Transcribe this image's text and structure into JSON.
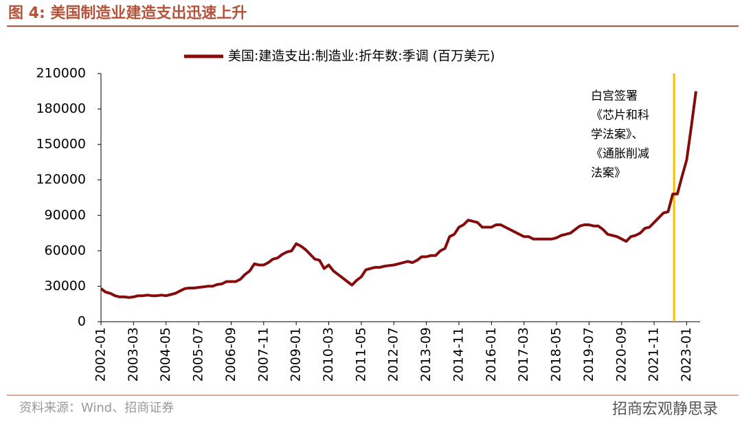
{
  "chart_data": {
    "type": "line",
    "title": "图 4:  美国制造业建造支出迅速上升",
    "source": "资料来源：Wind、招商证券",
    "watermark": "招商宏观静思录",
    "x": [
      "2002-01",
      "2002-03",
      "2002-05",
      "2002-07",
      "2002-09",
      "2002-11",
      "2003-01",
      "2003-03",
      "2003-05",
      "2003-07",
      "2003-09",
      "2003-11",
      "2004-01",
      "2004-03",
      "2004-05",
      "2004-07",
      "2004-09",
      "2004-11",
      "2005-01",
      "2005-03",
      "2005-05",
      "2005-07",
      "2005-09",
      "2005-11",
      "2006-01",
      "2006-03",
      "2006-05",
      "2006-07",
      "2006-09",
      "2006-11",
      "2007-01",
      "2007-03",
      "2007-05",
      "2007-07",
      "2007-09",
      "2007-11",
      "2008-01",
      "2008-03",
      "2008-05",
      "2008-07",
      "2008-09",
      "2008-11",
      "2009-01",
      "2009-03",
      "2009-05",
      "2009-07",
      "2009-09",
      "2009-11",
      "2010-01",
      "2010-03",
      "2010-05",
      "2010-07",
      "2010-09",
      "2010-11",
      "2011-01",
      "2011-03",
      "2011-05",
      "2011-07",
      "2011-09",
      "2011-11",
      "2012-01",
      "2012-03",
      "2012-05",
      "2012-07",
      "2012-09",
      "2012-11",
      "2013-01",
      "2013-03",
      "2013-05",
      "2013-07",
      "2013-09",
      "2013-11",
      "2014-01",
      "2014-03",
      "2014-05",
      "2014-07",
      "2014-09",
      "2014-11",
      "2015-01",
      "2015-03",
      "2015-05",
      "2015-07",
      "2015-09",
      "2015-11",
      "2016-01",
      "2016-03",
      "2016-05",
      "2016-07",
      "2016-09",
      "2016-11",
      "2017-01",
      "2017-03",
      "2017-05",
      "2017-07",
      "2017-09",
      "2017-11",
      "2018-01",
      "2018-03",
      "2018-05",
      "2018-07",
      "2018-09",
      "2018-11",
      "2019-01",
      "2019-03",
      "2019-05",
      "2019-07",
      "2019-09",
      "2019-11",
      "2020-01",
      "2020-03",
      "2020-05",
      "2020-07",
      "2020-09",
      "2020-11",
      "2021-01",
      "2021-03",
      "2021-05",
      "2021-07",
      "2021-09",
      "2021-11",
      "2022-01",
      "2022-03",
      "2022-05",
      "2022-07",
      "2022-09",
      "2022-11",
      "2023-01",
      "2023-03",
      "2023-05"
    ],
    "xticks": [
      "2002-01",
      "2003-03",
      "2004-05",
      "2005-07",
      "2006-09",
      "2007-11",
      "2009-01",
      "2010-03",
      "2011-05",
      "2012-07",
      "2013-09",
      "2014-11",
      "2016-01",
      "2017-03",
      "2018-05",
      "2019-07",
      "2020-09",
      "2021-11",
      "2023-01"
    ],
    "series": [
      {
        "name": "美国:建造支出:制造业:折年数:季调 (百万美元)",
        "color": "#840c0c",
        "values": [
          28000,
          25000,
          24000,
          22000,
          21000,
          21000,
          20500,
          21000,
          22000,
          22000,
          22500,
          22000,
          22000,
          22500,
          22000,
          23000,
          24000,
          26000,
          28000,
          28500,
          28500,
          29000,
          29500,
          30000,
          30000,
          31500,
          32000,
          34000,
          34000,
          34000,
          36000,
          40000,
          43000,
          49000,
          48000,
          48000,
          50000,
          53000,
          54000,
          57000,
          59000,
          60000,
          66000,
          64000,
          61000,
          57000,
          53000,
          52000,
          45000,
          48000,
          43000,
          40000,
          37000,
          34000,
          31000,
          35000,
          38000,
          44000,
          45000,
          46000,
          46000,
          47000,
          47500,
          48000,
          49000,
          50000,
          51000,
          50000,
          52000,
          55000,
          55000,
          56000,
          56000,
          60000,
          62000,
          72000,
          74000,
          80000,
          82000,
          86000,
          85000,
          84000,
          80000,
          80000,
          80000,
          82000,
          82000,
          80000,
          78000,
          76000,
          74000,
          72000,
          72000,
          70000,
          70000,
          70000,
          70000,
          70000,
          71000,
          73000,
          74000,
          75000,
          78000,
          81000,
          82000,
          82000,
          81000,
          81000,
          78000,
          74000,
          73000,
          72000,
          70000,
          68000,
          72000,
          73000,
          75000,
          79000,
          80000,
          84000,
          88000,
          92000,
          93000,
          108000,
          108000,
          123000,
          137000,
          165000,
          195000
        ]
      }
    ],
    "ylim": [
      0,
      210000
    ],
    "yticks": [
      0,
      30000,
      60000,
      90000,
      120000,
      150000,
      180000,
      210000
    ],
    "annotation": {
      "x": "2022-07",
      "color": "#f5c000",
      "text": [
        "白宫签署",
        "《芯片和科",
        "学法案》、",
        "《通胀削减",
        "法案》"
      ]
    },
    "legend": "top"
  }
}
